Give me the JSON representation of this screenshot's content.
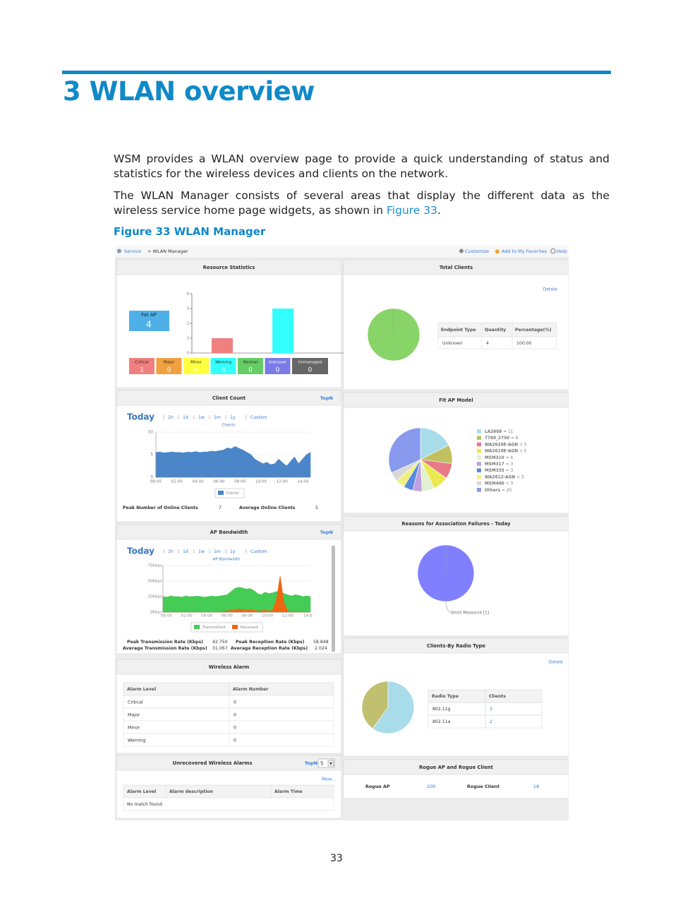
{
  "heading": "3 WLAN overview",
  "paragraph_1": "WSM provides a WLAN overview page to provide a quick understanding of status and statistics for the wireless devices and clients on the network.",
  "paragraph_2": {
    "text": "The WLAN Manager consists of several areas that display the different data as the wireless service home page widgets, as shown in ",
    "link": "Figure 33",
    "end": "."
  },
  "figure_caption": "Figure 33 WLAN Manager",
  "page_number": "33",
  "screenshot": {
    "breadcrumb": {
      "link": "Service",
      "current": "> WLAN Manager"
    },
    "toolbar": [
      "Customize",
      "Add to My Favorites",
      "Help"
    ],
    "resource_statistics": {
      "title": "Resource Statistics",
      "fat_ap_label": "Fat AP",
      "fat_ap_count": 4,
      "categories": [
        "Critical",
        "Major",
        "Minor",
        "Warning",
        "Normal",
        "Unknown",
        "Unmanaged"
      ],
      "values": [
        1,
        0,
        0,
        3,
        0,
        0,
        0
      ],
      "colors": [
        "#f08080",
        "#f0a040",
        "#ffff40",
        "#33ffff",
        "#66cc66",
        "#7b7be8",
        "#666666"
      ],
      "ylim": [
        0,
        4
      ],
      "yticks": [
        0,
        1,
        2,
        3,
        4
      ]
    },
    "client_count": {
      "title": "Client Count",
      "topn": "TopN",
      "period": "Today",
      "ranges": [
        "1h",
        "1d",
        "1w",
        "1m",
        "1y",
        "Custom"
      ],
      "chart_title": "Clients",
      "ylim": [
        0,
        10
      ],
      "yticks": [
        0,
        5,
        10
      ],
      "x_labels": [
        "08-05",
        "02:00",
        "04:00",
        "06:00",
        "08:00",
        "10:00",
        "12:00",
        "14:00"
      ],
      "series": {
        "name": "Clients",
        "color": "#4a86c8",
        "values": [
          5.5,
          5.6,
          5.4,
          5.5,
          5.6,
          5.5,
          5.5,
          5.4,
          5.6,
          5.5,
          5.7,
          5.5,
          5.6,
          5.6,
          5.8,
          5.7,
          5.9,
          6,
          6.5,
          6.3,
          6.8,
          6.4,
          6,
          5.5,
          5,
          4,
          3.5,
          3,
          3.3,
          2.8,
          3,
          4,
          3.2,
          2.5,
          3.5,
          4.5,
          3,
          4,
          5,
          5.5
        ]
      },
      "stats": [
        {
          "label": "Peak Number of Online Clients",
          "value": 7
        },
        {
          "label": "Average Online Clients",
          "value": 5
        }
      ]
    },
    "ap_bandwidth": {
      "title": "AP Bandwidth",
      "topn": "TopN",
      "period": "Today",
      "ranges": [
        "1h",
        "1d",
        "1w",
        "1m",
        "1y",
        "Custom"
      ],
      "chart_title": "AP Bandwidth",
      "ylim": [
        0,
        75
      ],
      "yticks": [
        {
          "value": 0,
          "label": "0Kbps"
        },
        {
          "value": 25,
          "label": "25Kbps"
        },
        {
          "value": 50,
          "label": "50Kbps"
        },
        {
          "value": 75,
          "label": "75Kbps"
        }
      ],
      "x_labels": [
        "08-05",
        "02:00",
        "04:00",
        "06:00",
        "08:00",
        "10:00",
        "12:00",
        "14:0"
      ],
      "series": [
        {
          "name": "Transmitted",
          "color": "#44cc55",
          "values": [
            25,
            24,
            26,
            25,
            25,
            24,
            26,
            25,
            25,
            26,
            25,
            24,
            25,
            26,
            25,
            26,
            27,
            28,
            33,
            38,
            40,
            39,
            37,
            38,
            35,
            30,
            28,
            32,
            30,
            31,
            33,
            34,
            30,
            28,
            26,
            28,
            27,
            25,
            26,
            25
          ]
        },
        {
          "name": "Received",
          "color": "#ee6611",
          "values": [
            0,
            0,
            0,
            0,
            0,
            0,
            0,
            0,
            0,
            0,
            0,
            0,
            0,
            0,
            0,
            0,
            1,
            2,
            3,
            4,
            5,
            4,
            3,
            4,
            3,
            2,
            2,
            3,
            2,
            3,
            20,
            58,
            15,
            2,
            1,
            1,
            0,
            0,
            0,
            0
          ]
        }
      ],
      "stats": [
        {
          "label": "Peak Transmission Rate (Kbps)",
          "value": "42.750"
        },
        {
          "label": "Peak Reception Rate (Kbps)",
          "value": "58.848"
        },
        {
          "label": "Average Transmission Rate (Kbps)",
          "value": "31.067"
        },
        {
          "label": "Average Reception Rate (Kbps)",
          "value": "2.024"
        }
      ]
    },
    "wireless_alarm": {
      "title": "Wireless Alarm",
      "columns": [
        "Alarm Level",
        "Alarm Number"
      ],
      "rows": [
        [
          "Critical",
          0
        ],
        [
          "Major",
          0
        ],
        [
          "Minor",
          0
        ],
        [
          "Warning",
          0
        ]
      ]
    },
    "unrecovered_alarms": {
      "title": "Unrecovered Wireless Alarms",
      "topn": "TopN",
      "topn_count": 5,
      "more": "More...",
      "columns": [
        "Alarm Level",
        "Alarm description",
        "Alarm Time"
      ],
      "empty": "No match found."
    },
    "total_clients": {
      "title": "Total Clients",
      "details": "Details",
      "colors": [
        "#88d468"
      ],
      "columns": [
        "Endpoint Type",
        "Quantity",
        "Percentage(%)"
      ],
      "rows": [
        [
          "Unknown",
          4,
          "100.00"
        ]
      ]
    },
    "fit_ap_model": {
      "title": "Fit AP Model",
      "names": [
        "LA2608",
        "7760_2750",
        "WA2620E-AGN",
        "WA2610E-AGN",
        "MSM310",
        "MSM317",
        "MSM335",
        "WA2612-AGN",
        "MSM460",
        "Others"
      ],
      "values": [
        11,
        6,
        5,
        5,
        4,
        3,
        3,
        3,
        3,
        20
      ],
      "value_labels": [
        "= 11",
        "= 6",
        "= 5",
        "= 5",
        "= 4",
        "= 3",
        "= 3",
        "= 3",
        "= 3",
        "= 20"
      ],
      "colors": [
        "#a8dcea",
        "#c0c060",
        "#e87a8a",
        "#eaea50",
        "#e0f0d0",
        "#c0a0e0",
        "#5a8ae0",
        "#f0f080",
        "#d8d8d8",
        "#8899ee"
      ]
    },
    "association_failures": {
      "title": "Reasons for Association Failures - Today",
      "values": [
        1
      ],
      "value_labels": [
        "Short Resource [1]"
      ],
      "colors": [
        "#8080ff"
      ]
    },
    "clients_by_radio": {
      "title": "Clients-By Radio Type",
      "details": "Details",
      "colors": [
        "#a8dcea",
        "#c0c070"
      ],
      "columns": [
        "Radio Type",
        "Clients"
      ],
      "rows": [
        [
          "802.11g",
          3
        ],
        [
          "802.11a",
          2
        ]
      ]
    },
    "rogue": {
      "title": "Rogue AP and Rogue Client",
      "items": [
        {
          "label": "Rogue AP",
          "value": 209
        },
        {
          "label": "Rogue Client",
          "value": 18
        }
      ]
    }
  }
}
